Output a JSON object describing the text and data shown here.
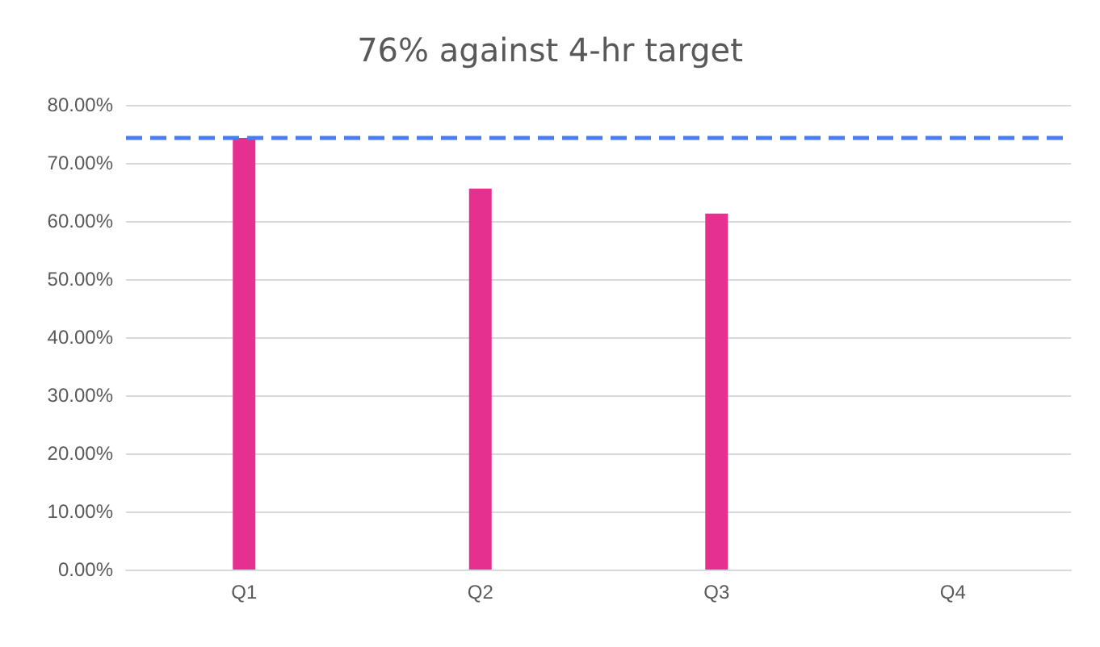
{
  "chart_data": {
    "type": "bar",
    "title": "76% against 4-hr target",
    "categories": [
      "Q1",
      "Q2",
      "Q3",
      "Q4"
    ],
    "series": [
      {
        "color": "#e6308f",
        "values": [
          74.3,
          65.6,
          61.3,
          null
        ]
      }
    ],
    "ylim": [
      0,
      80
    ],
    "yticks": [
      {
        "value": 0,
        "label": "0.00%"
      },
      {
        "value": 10,
        "label": "10.00%"
      },
      {
        "value": 20,
        "label": "20.00%"
      },
      {
        "value": 30,
        "label": "30.00%"
      },
      {
        "value": 40,
        "label": "40.00%"
      },
      {
        "value": 50,
        "label": "50.00%"
      },
      {
        "value": 60,
        "label": "60.00%"
      },
      {
        "value": 70,
        "label": "70.00%"
      },
      {
        "value": 80,
        "label": "80.00%"
      }
    ],
    "ref_lines": [
      {
        "axis": "y",
        "value": 74.5,
        "color": "#4a7cf0",
        "line_style": "dashed"
      }
    ],
    "grid": true
  }
}
